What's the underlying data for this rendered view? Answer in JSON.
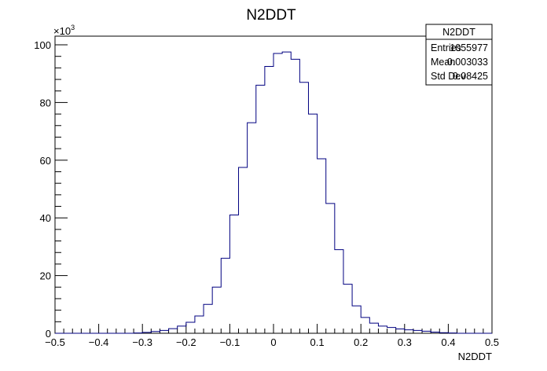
{
  "chart_data": {
    "type": "bar",
    "title": "N2DDT",
    "xlabel": "N2DDT",
    "ylabel": "",
    "y_multiplier_label": "×10",
    "y_multiplier_exponent": "3",
    "xlim": [
      -0.5,
      0.5
    ],
    "ylim": [
      0,
      103
    ],
    "x_ticks": [
      -0.5,
      -0.4,
      -0.3,
      -0.2,
      -0.1,
      0,
      0.1,
      0.2,
      0.3,
      0.4,
      0.5
    ],
    "x_tick_labels": [
      "−0.5",
      "−0.4",
      "−0.3",
      "−0.2",
      "−0.1",
      "0",
      "0.1",
      "0.2",
      "0.3",
      "0.4",
      "0.5"
    ],
    "y_ticks": [
      0,
      20,
      40,
      60,
      80,
      100
    ],
    "y_tick_labels": [
      "0",
      "20",
      "40",
      "60",
      "80",
      "100"
    ],
    "bin_edges": [
      -0.5,
      -0.48,
      -0.46,
      -0.44,
      -0.42,
      -0.4,
      -0.38,
      -0.36,
      -0.34,
      -0.32,
      -0.3,
      -0.28,
      -0.26,
      -0.24,
      -0.22,
      -0.2,
      -0.18,
      -0.16,
      -0.14,
      -0.12,
      -0.1,
      -0.08,
      -0.06,
      -0.04,
      -0.02,
      0,
      0.02,
      0.04,
      0.06,
      0.08,
      0.1,
      0.12,
      0.14,
      0.16,
      0.18,
      0.2,
      0.22,
      0.24,
      0.26,
      0.28,
      0.3,
      0.32,
      0.34,
      0.36,
      0.38,
      0.4,
      0.42,
      0.44,
      0.46,
      0.48,
      0.5
    ],
    "values": [
      0,
      0,
      0,
      0,
      0,
      0,
      0,
      0,
      0,
      0.1,
      0.3,
      0.6,
      1.0,
      1.6,
      2.5,
      3.8,
      6.0,
      10.0,
      16.0,
      26.0,
      41.0,
      57.5,
      73.0,
      86.0,
      92.5,
      97.0,
      97.5,
      95.0,
      87.0,
      76.0,
      60.5,
      45.0,
      29.0,
      17.0,
      9.5,
      5.5,
      3.5,
      2.5,
      2.0,
      1.5,
      1.2,
      1.0,
      0.7,
      0.4,
      0.2,
      0.1,
      0,
      0,
      0,
      0
    ],
    "line_color": "#000080",
    "legend": "top-right",
    "stats": {
      "title": "N2DDT",
      "rows": [
        {
          "label": "Entries",
          "value": "1055977"
        },
        {
          "label": "Mean",
          "value": "0.003033"
        },
        {
          "label": "Std Dev",
          "value": "0.08425"
        }
      ]
    }
  }
}
